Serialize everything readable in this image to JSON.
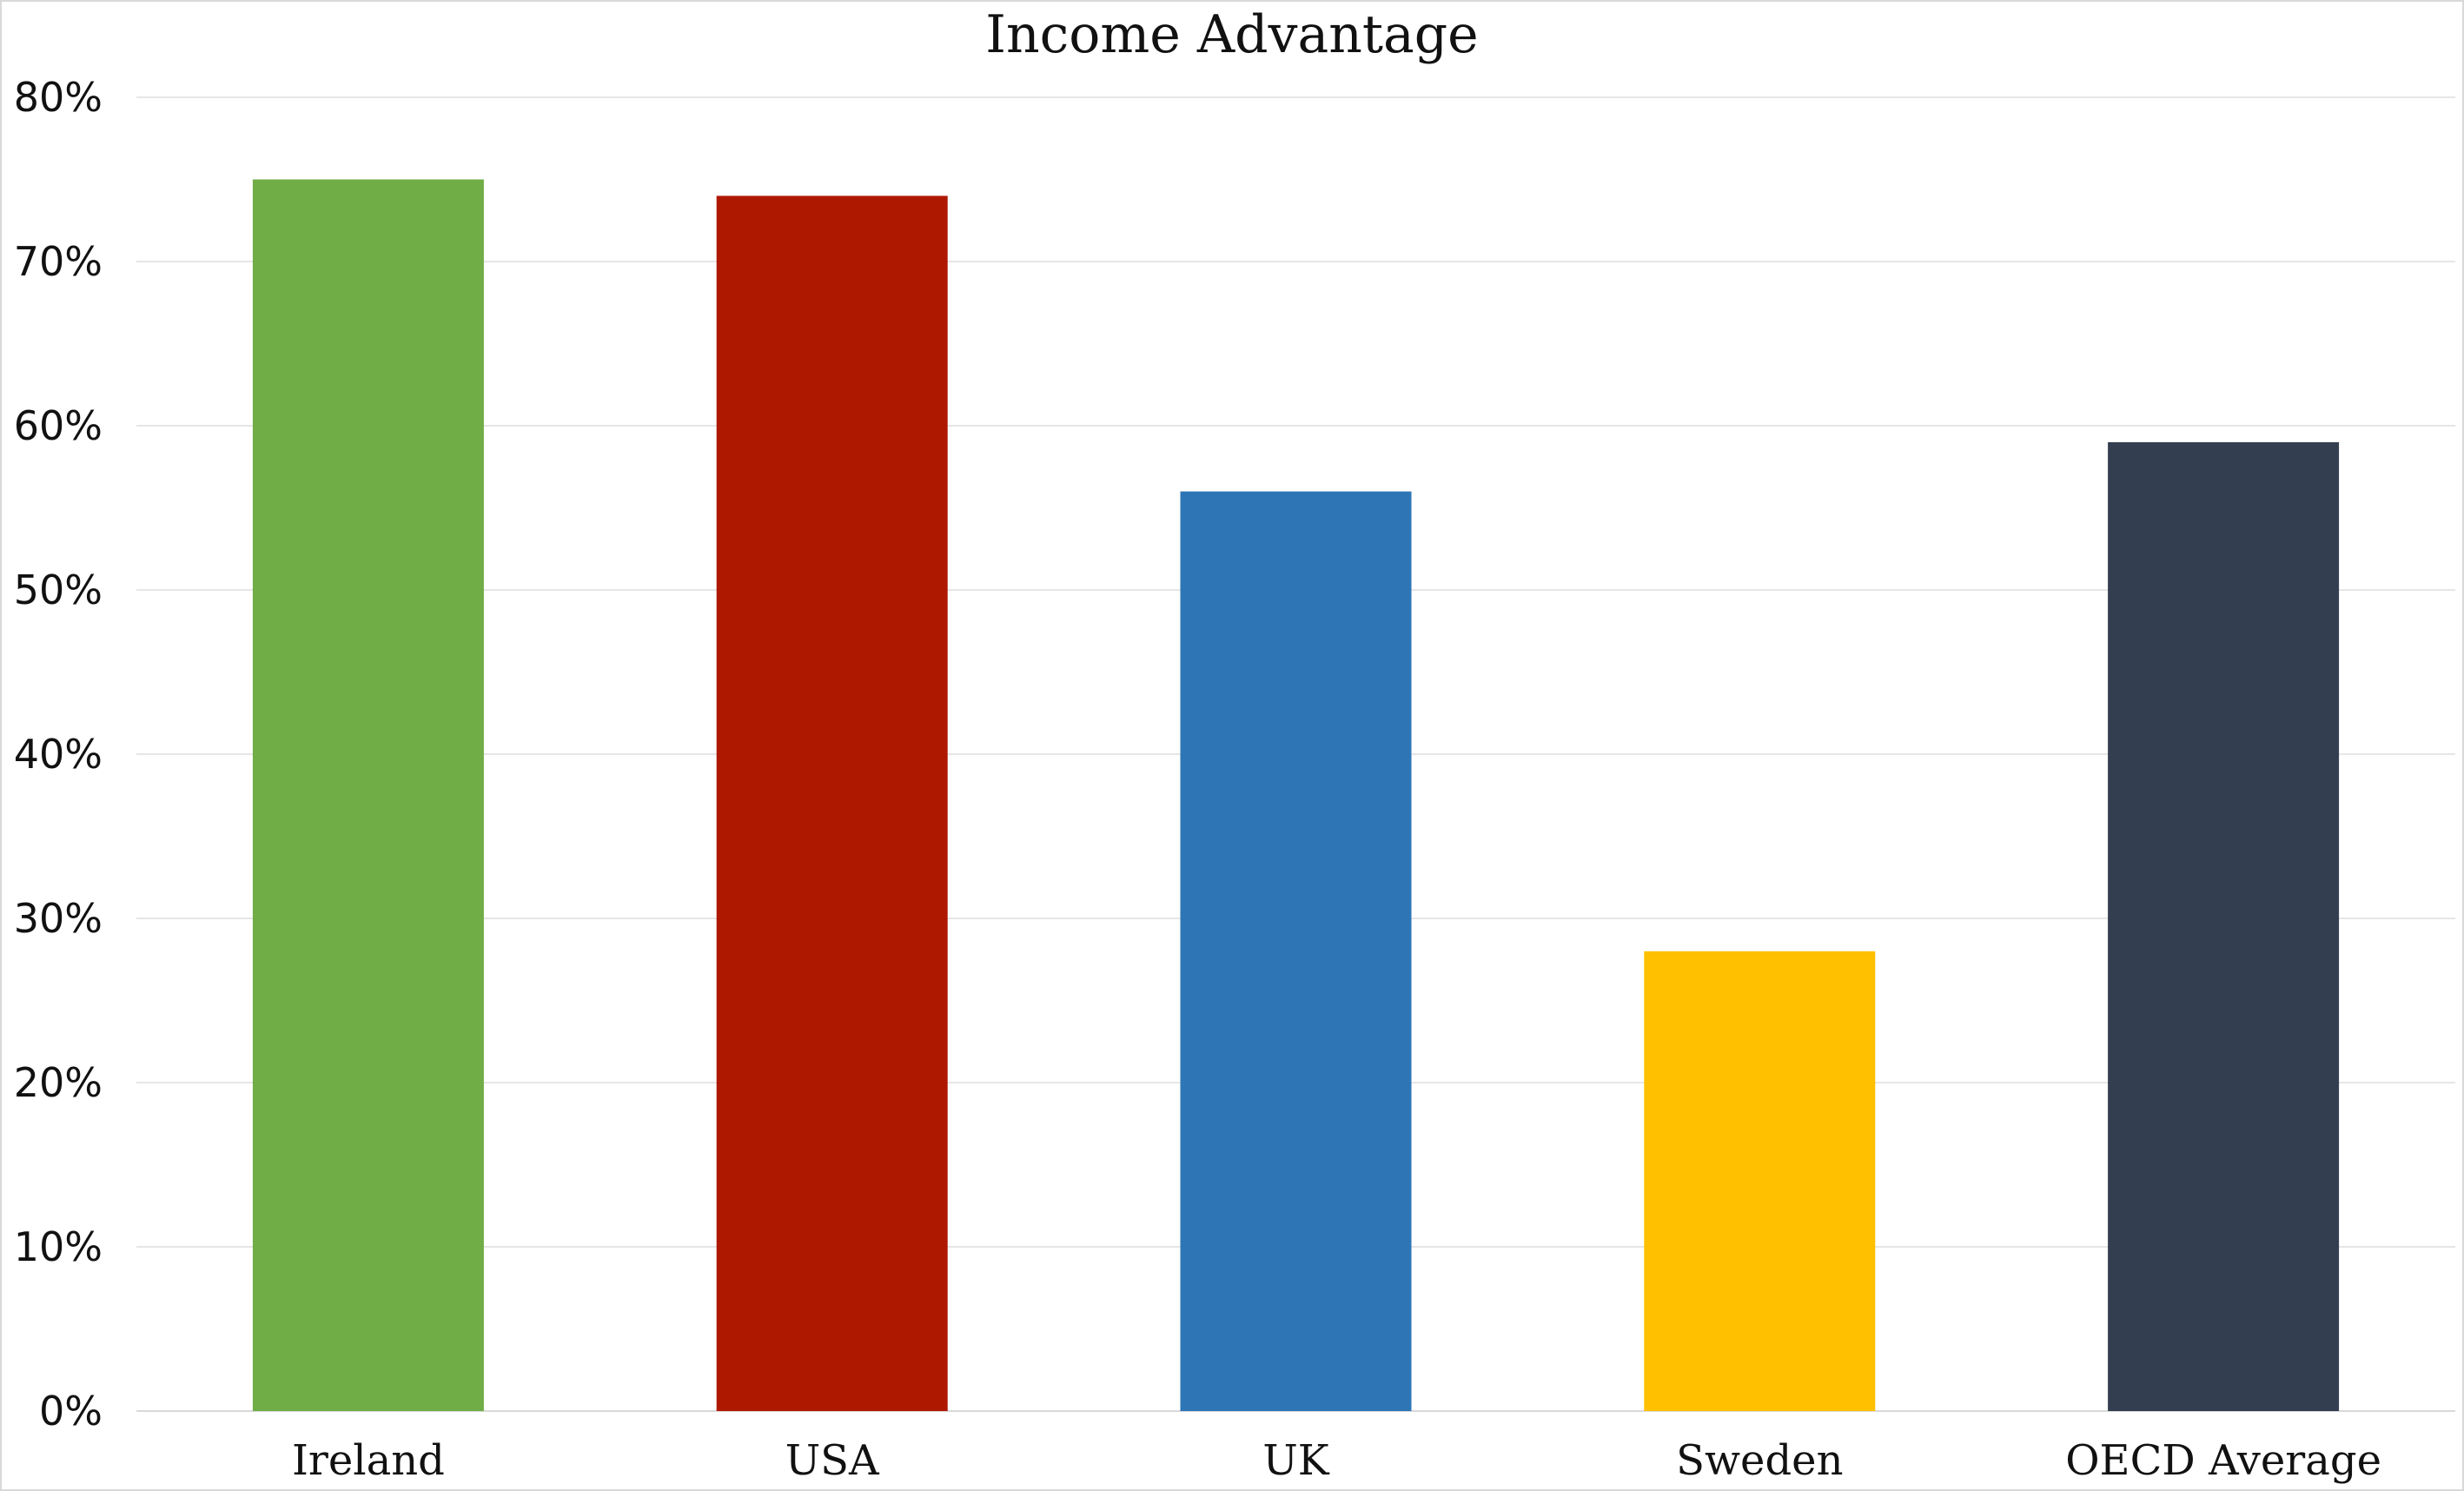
{
  "chart_data": {
    "type": "bar",
    "title": "Income Advantage",
    "categories": [
      "Ireland",
      "USA",
      "UK",
      "Sweden",
      "OECD Average"
    ],
    "values": [
      0.75,
      0.74,
      0.56,
      0.28,
      0.59
    ],
    "colors": [
      "#70ad47",
      "#ae1800",
      "#2e75b6",
      "#ffc000",
      "#333f50"
    ],
    "ylim": [
      0,
      0.8
    ],
    "yticks": [
      {
        "value": 0,
        "label": "0%"
      },
      {
        "value": 0.1,
        "label": "10%"
      },
      {
        "value": 0.2,
        "label": "20%"
      },
      {
        "value": 0.3,
        "label": "30%"
      },
      {
        "value": 0.4,
        "label": "40%"
      },
      {
        "value": 0.5,
        "label": "50%"
      },
      {
        "value": 0.6,
        "label": "60%"
      },
      {
        "value": 0.7,
        "label": "70%"
      },
      {
        "value": 0.8,
        "label": "80%"
      }
    ],
    "grid": true,
    "legend": "none"
  }
}
